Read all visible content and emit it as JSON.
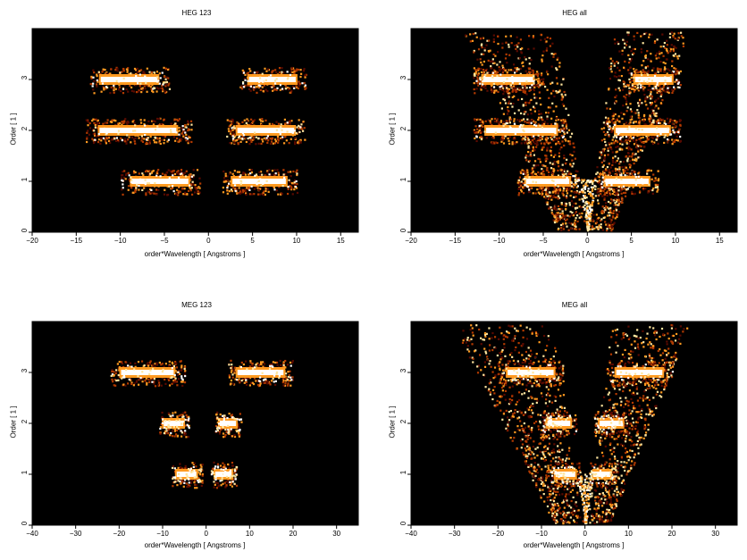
{
  "chart_data": [
    {
      "type": "heatmap",
      "title": "HEG 123",
      "xlabel": "order*Wavelength [ Angstroms ]",
      "ylabel": "Order [ 1 ]",
      "xlim": [
        -20,
        17
      ],
      "ylim": [
        0,
        4
      ],
      "xticks": [
        -20,
        -15,
        -10,
        -5,
        0,
        5,
        10,
        15
      ],
      "yticks": [
        0,
        1,
        2,
        3
      ],
      "colormap": [
        "#000000",
        "#5a0a00",
        "#b33a00",
        "#ff9a20",
        "#ffe6a0",
        "#ffffff"
      ],
      "bands": [
        {
          "order": 1,
          "x_ranges": [
            [
              -10,
              -1
            ],
            [
              1.5,
              10
            ]
          ]
        },
        {
          "order": 2,
          "x_ranges": [
            [
              -14,
              -2
            ],
            [
              2,
              11
            ]
          ]
        },
        {
          "order": 3,
          "x_ranges": [
            [
              -13.5,
              -4.5
            ],
            [
              3.5,
              11
            ]
          ]
        }
      ],
      "wedges": false
    },
    {
      "type": "heatmap",
      "title": "HEG all",
      "xlabel": "order*Wavelength [ Angstroms ]",
      "ylabel": "Order [ 1 ]",
      "xlim": [
        -20,
        17
      ],
      "ylim": [
        0,
        4
      ],
      "xticks": [
        -20,
        -15,
        -10,
        -5,
        0,
        5,
        10,
        15
      ],
      "yticks": [
        0,
        1,
        2,
        3
      ],
      "colormap": [
        "#000000",
        "#5a0a00",
        "#b33a00",
        "#ff9a20",
        "#ffe6a0",
        "#ffffff"
      ],
      "bands": [
        {
          "order": 1,
          "x_ranges": [
            [
              -8,
              -1
            ],
            [
              1,
              8
            ]
          ]
        },
        {
          "order": 2,
          "x_ranges": [
            [
              -13,
              -2
            ],
            [
              2,
              10.5
            ]
          ]
        },
        {
          "order": 3,
          "x_ranges": [
            [
              -13,
              -5
            ],
            [
              4.5,
              10.5
            ]
          ]
        }
      ],
      "wedges": true,
      "wedge_half_width": [
        -13,
        10.5
      ]
    },
    {
      "type": "heatmap",
      "title": "MEG 123",
      "xlabel": "order*Wavelength [ Angstroms ]",
      "ylabel": "Order [ 1 ]",
      "xlim": [
        -40,
        35
      ],
      "ylim": [
        0,
        4
      ],
      "xticks": [
        -40,
        -30,
        -20,
        -10,
        0,
        10,
        20,
        30
      ],
      "yticks": [
        0,
        1,
        2,
        3
      ],
      "colormap": [
        "#000000",
        "#5a0a00",
        "#b33a00",
        "#ff9a20",
        "#ffe6a0",
        "#ffffff"
      ],
      "bands": [
        {
          "order": 1,
          "x_ranges": [
            [
              -8,
              -1
            ],
            [
              1,
              7
            ]
          ]
        },
        {
          "order": 2,
          "x_ranges": [
            [
              -11,
              -4
            ],
            [
              2,
              8
            ]
          ]
        },
        {
          "order": 3,
          "x_ranges": [
            [
              -22,
              -5
            ],
            [
              5,
              20
            ]
          ]
        }
      ],
      "wedges": false
    },
    {
      "type": "heatmap",
      "title": "MEG all",
      "xlabel": "order*Wavelength [ Angstroms ]",
      "ylabel": "Order [ 1 ]",
      "xlim": [
        -40,
        35
      ],
      "ylim": [
        0,
        4
      ],
      "xticks": [
        -40,
        -30,
        -20,
        -10,
        0,
        10,
        20,
        30
      ],
      "yticks": [
        0,
        1,
        2,
        3
      ],
      "colormap": [
        "#000000",
        "#5a0a00",
        "#b33a00",
        "#ff9a20",
        "#ffe6a0",
        "#ffffff"
      ],
      "bands": [
        {
          "order": 1,
          "x_ranges": [
            [
              -8,
              -1
            ],
            [
              1,
              7
            ]
          ]
        },
        {
          "order": 2,
          "x_ranges": [
            [
              -10,
              -2
            ],
            [
              2,
              10
            ]
          ]
        },
        {
          "order": 3,
          "x_ranges": [
            [
              -20,
              -5
            ],
            [
              5,
              20
            ]
          ]
        }
      ],
      "wedges": true,
      "wedge_half_width": [
        -28,
        22
      ]
    }
  ]
}
